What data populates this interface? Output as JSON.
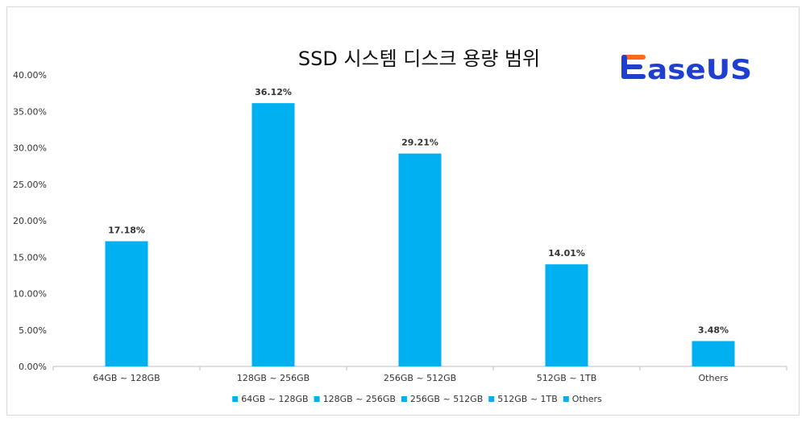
{
  "chart_data": {
    "type": "bar",
    "title": "SSD 시스템 디스크 용량 범위",
    "categories": [
      "64GB ~ 128GB",
      "128GB ~ 256GB",
      "256GB ~ 512GB",
      "512GB ~ 1TB",
      "Others"
    ],
    "values": [
      17.18,
      36.12,
      29.21,
      14.01,
      3.48
    ],
    "data_labels": [
      "17.18%",
      "36.12%",
      "29.21%",
      "14.01%",
      "3.48%"
    ],
    "y_ticks": [
      "0.00%",
      "5.00%",
      "10.00%",
      "15.00%",
      "20.00%",
      "25.00%",
      "30.00%",
      "35.00%",
      "40.00%"
    ],
    "ylim": [
      0,
      40
    ],
    "xlabel": "",
    "ylabel": "",
    "legend": [
      "64GB ~ 128GB",
      "128GB ~ 256GB",
      "256GB ~ 512GB",
      "512GB ~ 1TB",
      "Others"
    ],
    "legend_position": "bottom",
    "grid": false,
    "bar_color": "#00b0f0"
  },
  "logo": {
    "text": "EaseUS",
    "color_blue": "#1e3fd0",
    "color_orange": "#ff6a1a"
  }
}
